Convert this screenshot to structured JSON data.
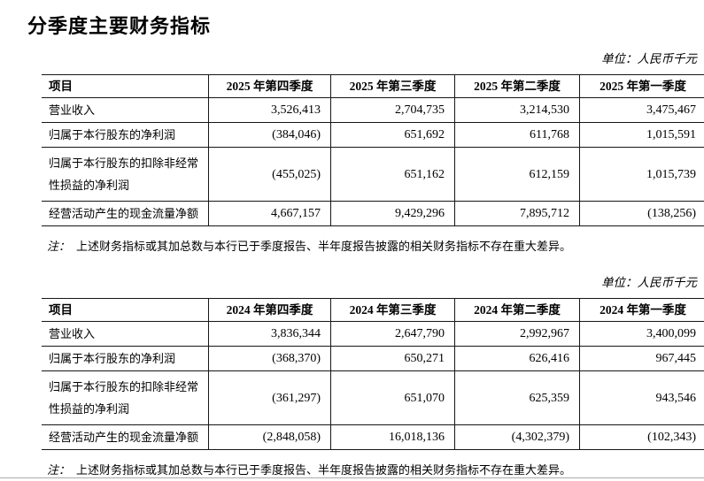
{
  "page": {
    "title": "分季度主要财务指标",
    "unit_label": "单位：人民币千元",
    "note_prefix": "注：",
    "note_text": "上述财务指标或其加总数与本行已于季度报告、半年度报告披露的相关财务指标不存在重大差异。"
  },
  "tables": [
    {
      "year": "2025",
      "headers": [
        "项目",
        "2025 年第四季度",
        "2025 年第三季度",
        "2025 年第二季度",
        "2025 年第一季度"
      ],
      "rows": [
        {
          "label": "营业收入",
          "values": [
            "3,526,413",
            "2,704,735",
            "3,214,530",
            "3,475,467"
          ]
        },
        {
          "label": "归属于本行股东的净利润",
          "values": [
            "(384,046)",
            "651,692",
            "611,768",
            "1,015,591"
          ]
        },
        {
          "label": "归属于本行股东的扣除非经常\n性损益的净利润",
          "values": [
            "(455,025)",
            "651,162",
            "612,159",
            "1,015,739"
          ]
        },
        {
          "label": "经营活动产生的现金流量净额",
          "values": [
            "4,667,157",
            "9,429,296",
            "7,895,712",
            "(138,256)"
          ]
        }
      ]
    },
    {
      "year": "2024",
      "headers": [
        "项目",
        "2024 年第四季度",
        "2024 年第三季度",
        "2024 年第二季度",
        "2024 年第一季度"
      ],
      "rows": [
        {
          "label": "营业收入",
          "values": [
            "3,836,344",
            "2,647,790",
            "2,992,967",
            "3,400,099"
          ]
        },
        {
          "label": "归属于本行股东的净利润",
          "values": [
            "(368,370)",
            "650,271",
            "626,416",
            "967,445"
          ]
        },
        {
          "label": "归属于本行股东的扣除非经常\n性损益的净利润",
          "values": [
            "(361,297)",
            "651,070",
            "625,359",
            "943,546"
          ]
        },
        {
          "label": "经营活动产生的现金流量净额",
          "values": [
            "(2,848,058)",
            "16,018,136",
            "(4,302,379)",
            "(102,343)"
          ]
        }
      ]
    }
  ],
  "colors": {
    "text": "#000000",
    "table_border": "#161616",
    "bottom_rule": "#ababab",
    "background": "#ffffff"
  }
}
